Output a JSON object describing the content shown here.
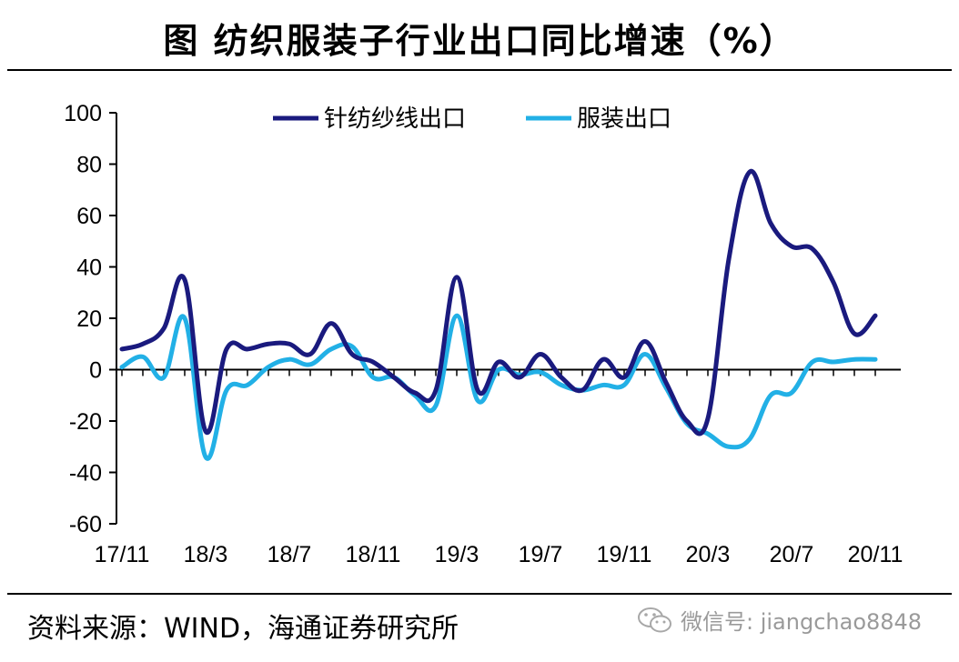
{
  "title": "图  纺织服装子行业出口同比增速（%）",
  "source": "资料来源：WIND，海通证券研究所",
  "watermark": "微信号: jiangchao8848",
  "colors": {
    "knit": "#1a1a7e",
    "apparel": "#22b0e6"
  },
  "chart_data": {
    "type": "line",
    "title": "图  纺织服装子行业出口同比增速（%）",
    "xlabel": "",
    "ylabel": "",
    "ylim": [
      -60,
      100
    ],
    "yticks": [
      "100",
      "80",
      "60",
      "40",
      "20",
      "0",
      "-20",
      "-40",
      "-60"
    ],
    "x_tick_labels": [
      "17/11",
      "18/3",
      "18/7",
      "18/11",
      "19/3",
      "19/7",
      "19/11",
      "20/3",
      "20/7",
      "20/11"
    ],
    "x": [
      "17/11",
      "17/12",
      "18/1",
      "18/2",
      "18/3",
      "18/4",
      "18/5",
      "18/6",
      "18/7",
      "18/8",
      "18/9",
      "18/10",
      "18/11",
      "18/12",
      "19/1",
      "19/2",
      "19/3",
      "19/4",
      "19/5",
      "19/6",
      "19/7",
      "19/8",
      "19/9",
      "19/10",
      "19/11",
      "19/12",
      "20/1",
      "20/2",
      "20/3",
      "20/4",
      "20/5",
      "20/6",
      "20/7",
      "20/8",
      "20/9",
      "20/10",
      "20/11"
    ],
    "legend_position": "top",
    "series": [
      {
        "name": "针纺纱线出口",
        "values": [
          8,
          10,
          16,
          35,
          -24,
          8,
          8,
          10,
          10,
          6,
          18,
          6,
          3,
          -3,
          -9,
          -8,
          36,
          -8,
          3,
          -3,
          6,
          -3,
          -8,
          4,
          -3,
          11,
          -5,
          -20,
          -19,
          43,
          77,
          57,
          48,
          47,
          34,
          14,
          21
        ]
      },
      {
        "name": "服装出口",
        "values": [
          1,
          5,
          -3,
          20,
          -34,
          -8,
          -6,
          1,
          4,
          2,
          8,
          9,
          -3,
          -3,
          -10,
          -14,
          21,
          -12,
          0,
          -2,
          -1,
          -6,
          -8,
          -6,
          -6,
          6,
          -7,
          -21,
          -25,
          -30,
          -27,
          -10,
          -9,
          3,
          3,
          4,
          4
        ]
      }
    ]
  }
}
